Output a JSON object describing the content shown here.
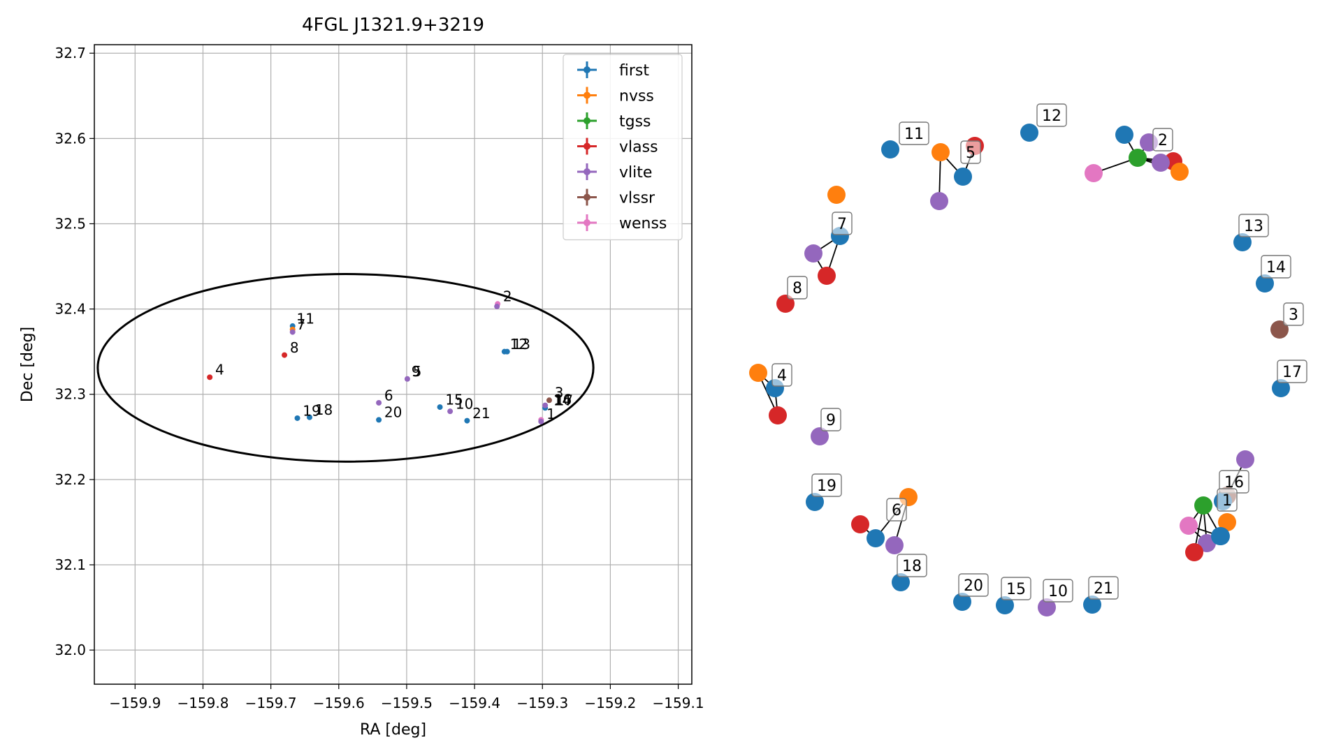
{
  "colors": {
    "first": "#1f77b4",
    "nvss": "#ff7f0e",
    "tgss": "#2ca02c",
    "vlass": "#d62728",
    "vlite": "#9467bd",
    "vlssr": "#8c564b",
    "wenss": "#e377c2"
  },
  "chart_data": [
    {
      "type": "scatter",
      "title": "4FGL J1321.9+3219",
      "xlabel": "RA [deg]",
      "ylabel": "Dec [deg]",
      "xlim": [
        -159.96,
        -159.08
      ],
      "ylim": [
        31.96,
        32.71
      ],
      "x_ticks": [
        -159.9,
        -159.8,
        -159.7,
        -159.6,
        -159.5,
        -159.4,
        -159.3,
        -159.2,
        -159.1
      ],
      "x_tick_labels": [
        "−159.9",
        "−159.8",
        "−159.7",
        "−159.6",
        "−159.5",
        "−159.4",
        "−159.3",
        "−159.2",
        "−159.1"
      ],
      "y_ticks": [
        32.0,
        32.1,
        32.2,
        32.3,
        32.4,
        32.5,
        32.6,
        32.7
      ],
      "y_tick_labels": [
        "32.0",
        "32.1",
        "32.2",
        "32.3",
        "32.4",
        "32.5",
        "32.6",
        "32.7"
      ],
      "grid": true,
      "legend_position": "top-right",
      "legend": [
        "first",
        "nvss",
        "tgss",
        "vlass",
        "vlite",
        "vlssr",
        "wenss"
      ],
      "ellipse": {
        "center": [
          -159.59,
          32.331
        ],
        "semi_axis_ra": 0.365,
        "semi_axis_dec": 0.11
      },
      "points": [
        {
          "survey": "first",
          "ra": -159.668,
          "dec": 32.38
        },
        {
          "survey": "nvss",
          "ra": -159.668,
          "dec": 32.376
        },
        {
          "survey": "vlite",
          "ra": -159.668,
          "dec": 32.373
        },
        {
          "survey": "vlass",
          "ra": -159.68,
          "dec": 32.346
        },
        {
          "survey": "vlass",
          "ra": -159.79,
          "dec": 32.32
        },
        {
          "survey": "wenss",
          "ra": -159.366,
          "dec": 32.406
        },
        {
          "survey": "vlite",
          "ra": -159.367,
          "dec": 32.403
        },
        {
          "survey": "first",
          "ra": -159.356,
          "dec": 32.35
        },
        {
          "survey": "first",
          "ra": -159.352,
          "dec": 32.35
        },
        {
          "survey": "vlite",
          "ra": -159.499,
          "dec": 32.318
        },
        {
          "survey": "vlite",
          "ra": -159.541,
          "dec": 32.29
        },
        {
          "survey": "first",
          "ra": -159.541,
          "dec": 32.27
        },
        {
          "survey": "first",
          "ra": -159.451,
          "dec": 32.285
        },
        {
          "survey": "vlite",
          "ra": -159.436,
          "dec": 32.28
        },
        {
          "survey": "first",
          "ra": -159.411,
          "dec": 32.269
        },
        {
          "survey": "first",
          "ra": -159.661,
          "dec": 32.272
        },
        {
          "survey": "first",
          "ra": -159.643,
          "dec": 32.273
        },
        {
          "survey": "vlssr",
          "ra": -159.29,
          "dec": 32.293
        },
        {
          "survey": "first",
          "ra": -159.296,
          "dec": 32.284
        },
        {
          "survey": "vlite",
          "ra": -159.296,
          "dec": 32.287
        },
        {
          "survey": "wenss",
          "ra": -159.302,
          "dec": 32.27
        },
        {
          "survey": "vlite",
          "ra": -159.302,
          "dec": 32.268
        }
      ],
      "annotations": [
        {
          "text": "11",
          "ra": -159.662,
          "dec": 32.383
        },
        {
          "text": "7",
          "ra": -159.662,
          "dec": 32.376
        },
        {
          "text": "8",
          "ra": -159.672,
          "dec": 32.349
        },
        {
          "text": "4",
          "ra": -159.782,
          "dec": 32.323
        },
        {
          "text": "2",
          "ra": -159.358,
          "dec": 32.409
        },
        {
          "text": "12",
          "ra": -159.348,
          "dec": 32.353
        },
        {
          "text": "13",
          "ra": -159.344,
          "dec": 32.353
        },
        {
          "text": "9",
          "ra": -159.493,
          "dec": 32.321
        },
        {
          "text": "5",
          "ra": -159.491,
          "dec": 32.321
        },
        {
          "text": "6",
          "ra": -159.533,
          "dec": 32.293
        },
        {
          "text": "20",
          "ra": -159.533,
          "dec": 32.273
        },
        {
          "text": "15",
          "ra": -159.443,
          "dec": 32.288
        },
        {
          "text": "10",
          "ra": -159.428,
          "dec": 32.283
        },
        {
          "text": "21",
          "ra": -159.403,
          "dec": 32.272
        },
        {
          "text": "19",
          "ra": -159.653,
          "dec": 32.275
        },
        {
          "text": "18",
          "ra": -159.635,
          "dec": 32.276
        },
        {
          "text": "3",
          "ra": -159.282,
          "dec": 32.296
        },
        {
          "text": "14",
          "ra": -159.284,
          "dec": 32.287
        },
        {
          "text": "16",
          "ra": -159.283,
          "dec": 32.288
        },
        {
          "text": "17",
          "ra": -159.281,
          "dec": 32.287
        },
        {
          "text": "1",
          "ra": -159.294,
          "dec": 32.271
        }
      ]
    },
    {
      "type": "network",
      "labels": [
        "11",
        "12",
        "2",
        "5",
        "7",
        "8",
        "13",
        "14",
        "3",
        "17",
        "4",
        "9",
        "19",
        "6",
        "18",
        "20",
        "15",
        "10",
        "21",
        "16",
        "1"
      ],
      "groups": [
        {
          "label": "11",
          "nodes": [
            {
              "survey": "first"
            }
          ]
        },
        {
          "label": "12",
          "nodes": [
            {
              "survey": "first"
            }
          ]
        },
        {
          "label": "2",
          "nodes": [
            {
              "survey": "first"
            },
            {
              "survey": "vlite"
            },
            {
              "survey": "tgss"
            },
            {
              "survey": "vlass"
            },
            {
              "survey": "vlite"
            },
            {
              "survey": "nvss"
            },
            {
              "survey": "wenss"
            }
          ]
        },
        {
          "label": "5",
          "nodes": [
            {
              "survey": "nvss"
            },
            {
              "survey": "vlass"
            },
            {
              "survey": "first"
            },
            {
              "survey": "vlite"
            }
          ]
        },
        {
          "label": "7",
          "nodes": [
            {
              "survey": "nvss"
            },
            {
              "survey": "first"
            },
            {
              "survey": "vlite"
            },
            {
              "survey": "vlass"
            }
          ]
        },
        {
          "label": "8",
          "nodes": [
            {
              "survey": "vlass"
            }
          ]
        },
        {
          "label": "13",
          "nodes": [
            {
              "survey": "first"
            }
          ]
        },
        {
          "label": "14",
          "nodes": [
            {
              "survey": "first"
            }
          ]
        },
        {
          "label": "3",
          "nodes": [
            {
              "survey": "vlssr"
            }
          ]
        },
        {
          "label": "17",
          "nodes": [
            {
              "survey": "first"
            }
          ]
        },
        {
          "label": "4",
          "nodes": [
            {
              "survey": "nvss"
            },
            {
              "survey": "first"
            },
            {
              "survey": "vlass"
            }
          ]
        },
        {
          "label": "9",
          "nodes": [
            {
              "survey": "vlite"
            }
          ]
        },
        {
          "label": "19",
          "nodes": [
            {
              "survey": "first"
            }
          ]
        },
        {
          "label": "6",
          "nodes": [
            {
              "survey": "nvss"
            },
            {
              "survey": "vlass"
            },
            {
              "survey": "first"
            },
            {
              "survey": "vlite"
            }
          ]
        },
        {
          "label": "18",
          "nodes": [
            {
              "survey": "first"
            }
          ]
        },
        {
          "label": "20",
          "nodes": [
            {
              "survey": "first"
            }
          ]
        },
        {
          "label": "15",
          "nodes": [
            {
              "survey": "first"
            }
          ]
        },
        {
          "label": "10",
          "nodes": [
            {
              "survey": "vlite"
            }
          ]
        },
        {
          "label": "21",
          "nodes": [
            {
              "survey": "first"
            }
          ]
        },
        {
          "label": "16",
          "nodes": [
            {
              "survey": "vlite"
            },
            {
              "survey": "vlssr"
            },
            {
              "survey": "first"
            }
          ]
        },
        {
          "label": "1",
          "nodes": [
            {
              "survey": "tgss"
            },
            {
              "survey": "nvss"
            },
            {
              "survey": "wenss"
            },
            {
              "survey": "first"
            },
            {
              "survey": "vlite"
            },
            {
              "survey": "vlass"
            },
            {
              "survey": "first"
            }
          ]
        }
      ]
    }
  ]
}
